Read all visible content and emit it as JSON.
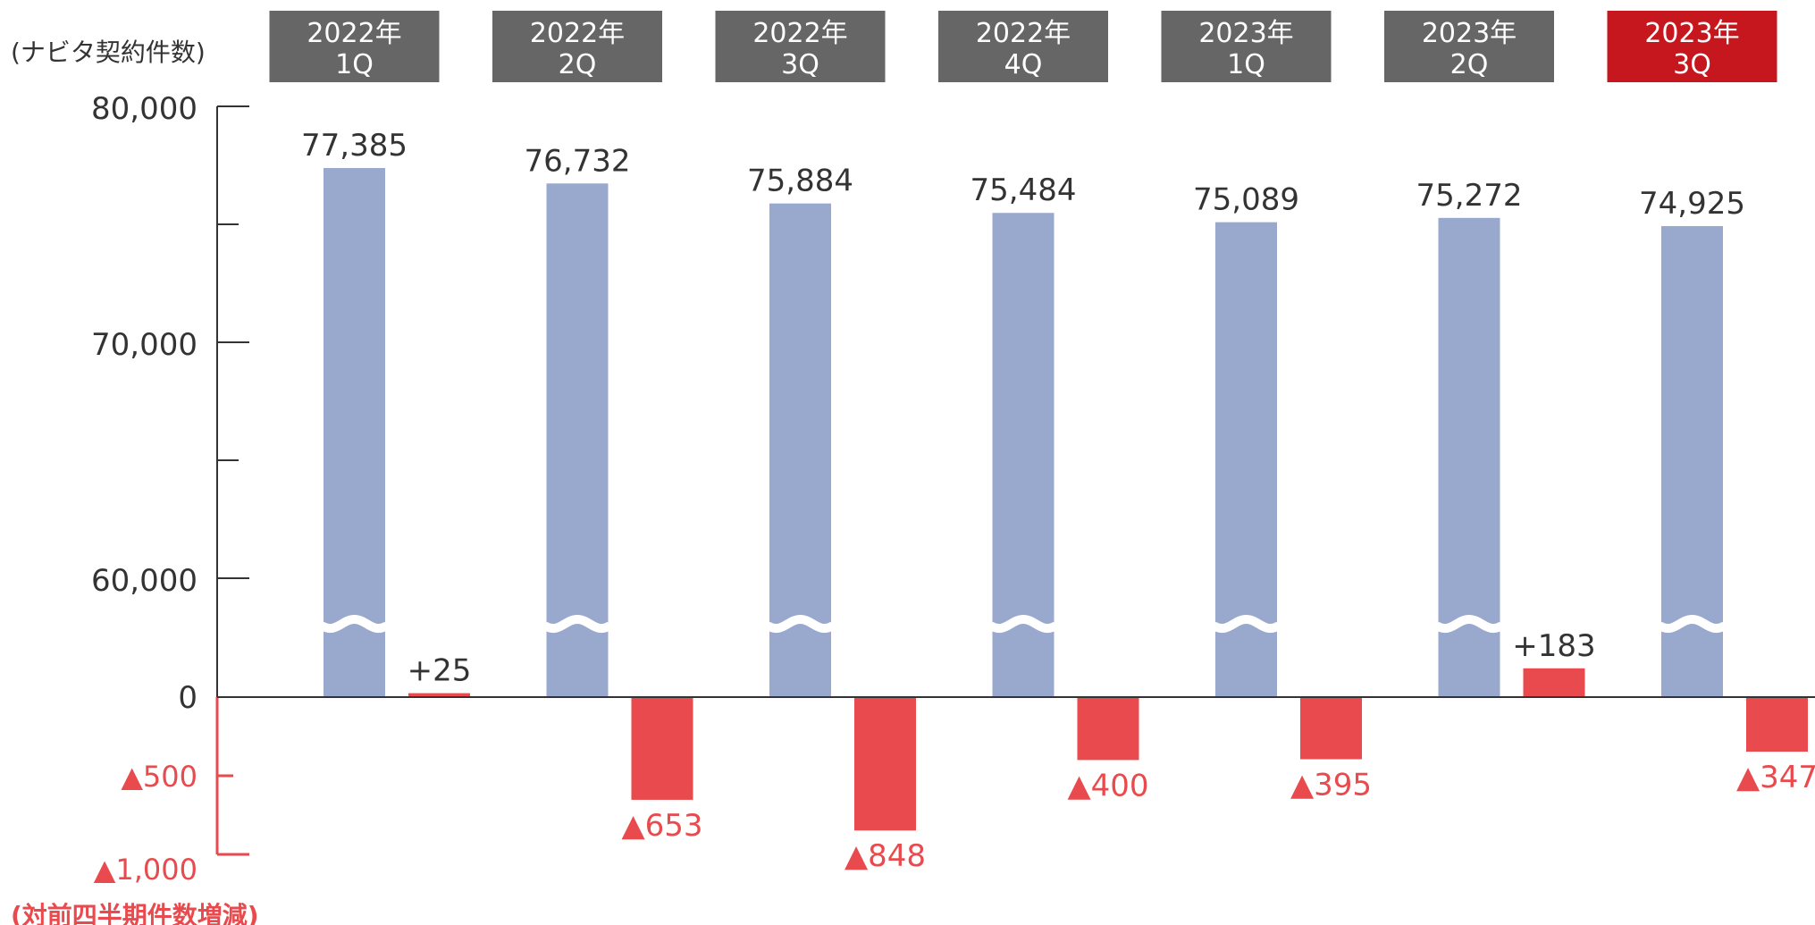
{
  "chart_data": {
    "type": "bar",
    "primary_axis_label": "(ナビタ契約件数)",
    "secondary_axis_label": "(対前四半期件数増減)",
    "categories": [
      {
        "year": "2022年",
        "quarter": "1Q"
      },
      {
        "year": "2022年",
        "quarter": "2Q"
      },
      {
        "year": "2022年",
        "quarter": "3Q"
      },
      {
        "year": "2022年",
        "quarter": "4Q"
      },
      {
        "year": "2023年",
        "quarter": "1Q"
      },
      {
        "year": "2023年",
        "quarter": "2Q"
      },
      {
        "year": "2023年",
        "quarter": "3Q"
      }
    ],
    "highlight_index": 6,
    "series": [
      {
        "values": [
          77385,
          76732,
          75884,
          75484,
          75089,
          75272,
          74925
        ],
        "labels": [
          "77,385",
          "76,732",
          "75,884",
          "75,484",
          "75,089",
          "75,272",
          "74,925"
        ]
      },
      {
        "values": [
          25,
          -653,
          -848,
          -400,
          -395,
          183,
          -347
        ],
        "labels": [
          "+25",
          "▲653",
          "▲848",
          "▲400",
          "▲395",
          "+183",
          "▲347"
        ]
      }
    ],
    "primary_ticks": [
      "80,000",
      "70,000",
      "60,000"
    ],
    "primary_ylim": [
      60000,
      80000
    ],
    "secondary_ticks": [
      "0",
      "▲500",
      "▲1,000"
    ],
    "secondary_ylim": [
      -1000,
      0
    ],
    "axis_break": true,
    "colors": {
      "count_bar": "#99a8cd",
      "change_bar": "#e84a4d",
      "header_box": "#666666",
      "header_highlight": "#c6171e",
      "negative_text": "#e84a4d",
      "text": "#333333"
    }
  }
}
